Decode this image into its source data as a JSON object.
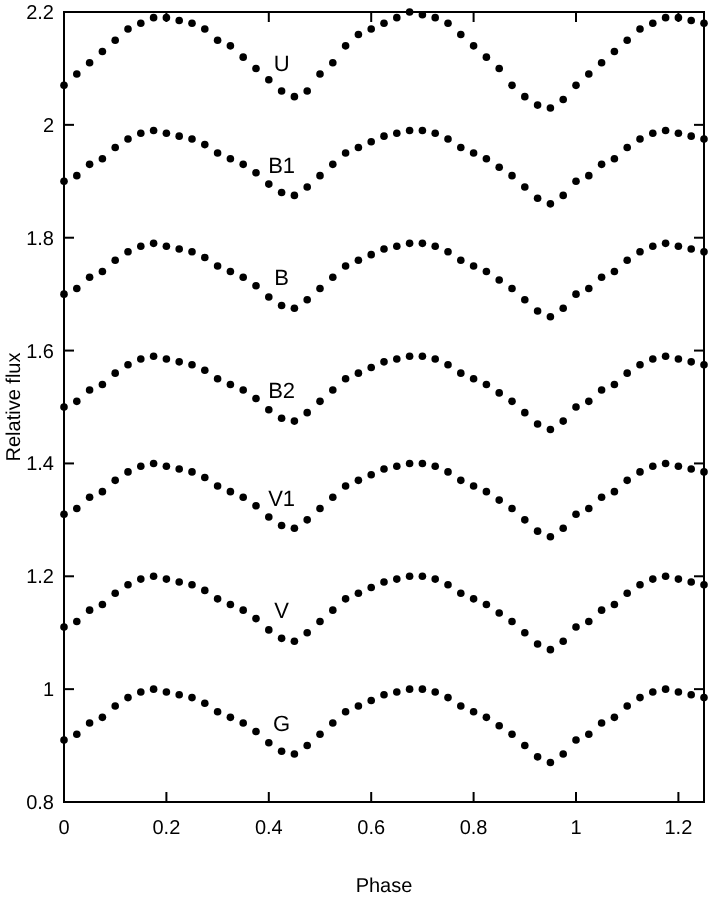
{
  "chart_data": {
    "type": "scatter",
    "xlabel": "Phase",
    "ylabel": "Relative flux",
    "xlim": [
      0,
      1.25
    ],
    "ylim": [
      0.8,
      2.2
    ],
    "xticks": [
      0,
      0.2,
      0.4,
      0.6,
      0.8,
      1,
      1.2
    ],
    "yticks": [
      0.8,
      1,
      1.2,
      1.4,
      1.6,
      1.8,
      2,
      2.2
    ],
    "marker": "circle",
    "grid": false,
    "x": [
      0,
      0.025,
      0.05,
      0.075,
      0.1,
      0.125,
      0.15,
      0.175,
      0.2,
      0.225,
      0.25,
      0.275,
      0.3,
      0.325,
      0.35,
      0.375,
      0.4,
      0.425,
      0.45,
      0.475,
      0.5,
      0.525,
      0.55,
      0.575,
      0.6,
      0.625,
      0.65,
      0.675,
      0.7,
      0.725,
      0.75,
      0.775,
      0.8,
      0.825,
      0.85,
      0.875,
      0.9,
      0.925,
      0.95,
      0.975,
      1,
      1.025,
      1.05,
      1.075,
      1.1,
      1.125,
      1.15,
      1.175,
      1.2,
      1.225,
      1.25
    ],
    "series": [
      {
        "name": "U",
        "color": "#000000",
        "values": [
          2.07,
          2.09,
          2.11,
          2.13,
          2.15,
          2.17,
          2.18,
          2.19,
          2.19,
          2.185,
          2.18,
          2.17,
          2.15,
          2.14,
          2.12,
          2.1,
          2.08,
          2.06,
          2.05,
          2.06,
          2.09,
          2.11,
          2.14,
          2.16,
          2.17,
          2.18,
          2.19,
          2.2,
          2.195,
          2.19,
          2.18,
          2.16,
          2.14,
          2.12,
          2.1,
          2.07,
          2.05,
          2.035,
          2.03,
          2.045,
          2.07,
          2.09,
          2.11,
          2.13,
          2.15,
          2.17,
          2.18,
          2.19,
          2.19,
          2.185,
          2.18
        ]
      },
      {
        "name": "B1",
        "color": "#000000",
        "values": [
          1.9,
          1.91,
          1.93,
          1.94,
          1.96,
          1.975,
          1.985,
          1.99,
          1.985,
          1.98,
          1.975,
          1.965,
          1.95,
          1.94,
          1.93,
          1.915,
          1.895,
          1.88,
          1.875,
          1.89,
          1.91,
          1.93,
          1.95,
          1.96,
          1.97,
          1.98,
          1.985,
          1.99,
          1.99,
          1.985,
          1.975,
          1.96,
          1.95,
          1.94,
          1.925,
          1.91,
          1.89,
          1.87,
          1.86,
          1.875,
          1.9,
          1.91,
          1.93,
          1.94,
          1.96,
          1.975,
          1.985,
          1.99,
          1.985,
          1.98,
          1.975
        ]
      },
      {
        "name": "B",
        "color": "#000000",
        "values": [
          1.7,
          1.71,
          1.73,
          1.74,
          1.76,
          1.775,
          1.785,
          1.79,
          1.785,
          1.78,
          1.775,
          1.765,
          1.75,
          1.74,
          1.73,
          1.715,
          1.695,
          1.68,
          1.675,
          1.69,
          1.71,
          1.73,
          1.75,
          1.76,
          1.77,
          1.78,
          1.785,
          1.79,
          1.79,
          1.785,
          1.775,
          1.76,
          1.75,
          1.74,
          1.725,
          1.71,
          1.69,
          1.67,
          1.66,
          1.675,
          1.7,
          1.71,
          1.73,
          1.74,
          1.76,
          1.775,
          1.785,
          1.79,
          1.785,
          1.78,
          1.775
        ]
      },
      {
        "name": "B2",
        "color": "#000000",
        "values": [
          1.5,
          1.51,
          1.53,
          1.54,
          1.56,
          1.575,
          1.585,
          1.59,
          1.585,
          1.58,
          1.575,
          1.565,
          1.55,
          1.54,
          1.53,
          1.515,
          1.495,
          1.48,
          1.475,
          1.49,
          1.51,
          1.53,
          1.55,
          1.56,
          1.57,
          1.58,
          1.585,
          1.59,
          1.59,
          1.585,
          1.575,
          1.56,
          1.55,
          1.54,
          1.525,
          1.51,
          1.49,
          1.47,
          1.46,
          1.475,
          1.5,
          1.51,
          1.53,
          1.54,
          1.56,
          1.575,
          1.585,
          1.59,
          1.585,
          1.58,
          1.575
        ]
      },
      {
        "name": "V1",
        "color": "#000000",
        "values": [
          1.31,
          1.32,
          1.34,
          1.35,
          1.37,
          1.385,
          1.395,
          1.4,
          1.395,
          1.39,
          1.385,
          1.375,
          1.36,
          1.35,
          1.34,
          1.325,
          1.305,
          1.29,
          1.285,
          1.3,
          1.32,
          1.34,
          1.36,
          1.37,
          1.38,
          1.39,
          1.395,
          1.4,
          1.4,
          1.395,
          1.385,
          1.37,
          1.36,
          1.35,
          1.335,
          1.32,
          1.3,
          1.28,
          1.27,
          1.285,
          1.31,
          1.32,
          1.34,
          1.35,
          1.37,
          1.385,
          1.395,
          1.4,
          1.395,
          1.39,
          1.385
        ]
      },
      {
        "name": "V",
        "color": "#000000",
        "values": [
          1.11,
          1.12,
          1.14,
          1.15,
          1.17,
          1.185,
          1.195,
          1.2,
          1.195,
          1.19,
          1.185,
          1.175,
          1.16,
          1.15,
          1.14,
          1.125,
          1.105,
          1.09,
          1.085,
          1.1,
          1.12,
          1.14,
          1.16,
          1.17,
          1.18,
          1.19,
          1.195,
          1.2,
          1.2,
          1.195,
          1.185,
          1.17,
          1.16,
          1.15,
          1.135,
          1.12,
          1.1,
          1.08,
          1.07,
          1.085,
          1.11,
          1.12,
          1.14,
          1.15,
          1.17,
          1.185,
          1.195,
          1.2,
          1.195,
          1.19,
          1.185
        ]
      },
      {
        "name": "G",
        "color": "#000000",
        "values": [
          0.91,
          0.92,
          0.94,
          0.95,
          0.97,
          0.985,
          0.995,
          1,
          0.995,
          0.99,
          0.985,
          0.975,
          0.96,
          0.95,
          0.94,
          0.925,
          0.905,
          0.89,
          0.885,
          0.9,
          0.92,
          0.94,
          0.96,
          0.97,
          0.98,
          0.99,
          0.995,
          1,
          1,
          0.995,
          0.985,
          0.97,
          0.96,
          0.95,
          0.935,
          0.92,
          0.9,
          0.88,
          0.87,
          0.885,
          0.91,
          0.92,
          0.94,
          0.95,
          0.97,
          0.985,
          0.995,
          1,
          0.995,
          0.99,
          0.985
        ]
      }
    ]
  }
}
